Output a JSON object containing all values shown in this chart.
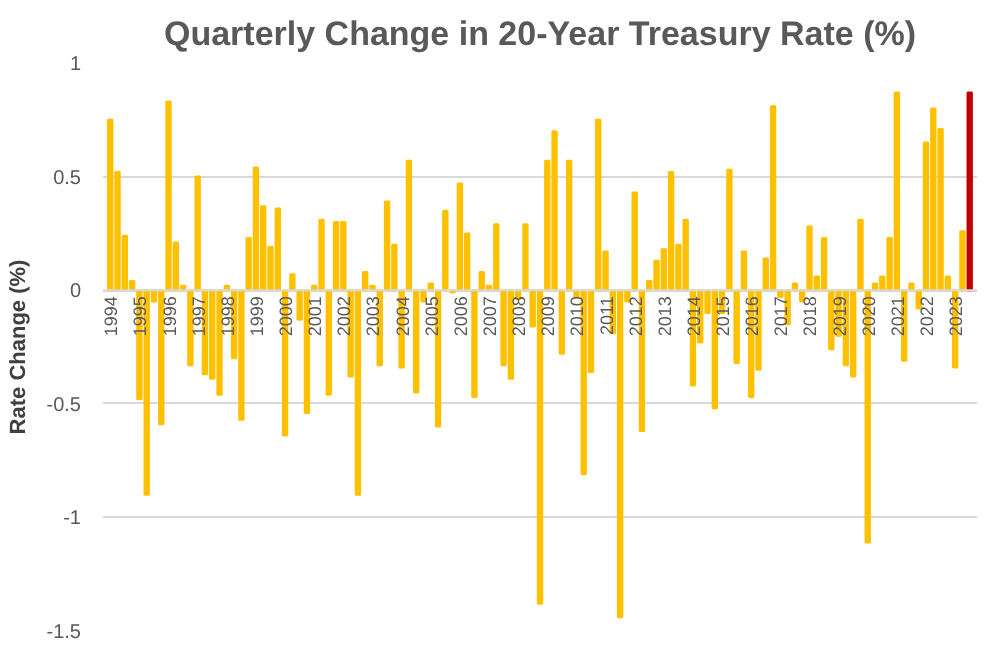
{
  "chart_data": {
    "type": "bar",
    "title": "Quarterly Change in 20-Year Treasury Rate (%)",
    "ylabel": "Rate Change (%)",
    "categories": [
      "1994",
      null,
      null,
      null,
      "1995",
      null,
      null,
      null,
      "1996",
      null,
      null,
      null,
      "1997",
      null,
      null,
      null,
      "1998",
      null,
      null,
      null,
      "1999",
      null,
      null,
      null,
      "2000",
      null,
      null,
      null,
      "2001",
      null,
      null,
      null,
      "2002",
      null,
      null,
      null,
      "2003",
      null,
      null,
      null,
      "2004",
      null,
      null,
      null,
      "2005",
      null,
      null,
      null,
      "2006",
      null,
      null,
      null,
      "2007",
      null,
      null,
      null,
      "2008",
      null,
      null,
      null,
      "2009",
      null,
      null,
      null,
      "2010",
      null,
      null,
      null,
      "2011",
      null,
      null,
      null,
      "2012",
      null,
      null,
      null,
      "2013",
      null,
      null,
      null,
      "2014",
      null,
      null,
      null,
      "2015",
      null,
      null,
      null,
      "2016",
      null,
      null,
      null,
      "2017",
      null,
      null,
      null,
      "2018",
      null,
      null,
      null,
      "2019",
      null,
      null,
      null,
      "2020",
      null,
      null,
      null,
      "2021",
      null,
      null,
      null,
      "2022",
      null,
      null,
      null,
      "2023",
      null,
      null
    ],
    "values": [
      0.75,
      0.52,
      0.24,
      0.04,
      -0.48,
      -0.9,
      -0.05,
      -0.59,
      0.83,
      0.21,
      0.02,
      -0.33,
      0.5,
      -0.37,
      -0.39,
      -0.46,
      0.02,
      -0.3,
      -0.57,
      0.23,
      0.54,
      0.37,
      0.19,
      0.36,
      -0.64,
      0.07,
      -0.13,
      -0.54,
      0.02,
      0.31,
      -0.46,
      0.3,
      0.3,
      -0.38,
      -0.9,
      0.08,
      0.02,
      -0.33,
      0.39,
      0.2,
      -0.34,
      0.57,
      -0.45,
      -0.05,
      0.03,
      -0.6,
      0.35,
      -0.01,
      0.47,
      0.25,
      -0.47,
      0.08,
      0.02,
      0.29,
      -0.33,
      -0.39,
      -0.04,
      0.29,
      -0.16,
      -1.38,
      0.57,
      0.7,
      -0.28,
      0.57,
      -0.03,
      -0.81,
      -0.36,
      0.75,
      0.17,
      -0.19,
      -1.44,
      -0.05,
      0.43,
      -0.62,
      0.04,
      0.13,
      0.18,
      0.52,
      0.2,
      0.31,
      -0.42,
      -0.23,
      -0.1,
      -0.52,
      -0.1,
      0.53,
      -0.32,
      0.17,
      -0.47,
      -0.35,
      0.14,
      0.81,
      -0.03,
      -0.15,
      0.03,
      -0.05,
      0.28,
      0.06,
      0.23,
      -0.26,
      -0.2,
      -0.33,
      -0.38,
      0.31,
      -1.11,
      0.03,
      0.06,
      0.23,
      0.87,
      -0.31,
      0.03,
      -0.08,
      0.65,
      0.8,
      0.71,
      0.06,
      -0.34,
      0.26,
      0.87
    ],
    "colors": [
      "#ffc000",
      "#ffc000",
      "#ffc000",
      "#ffc000",
      "#ffc000",
      "#ffc000",
      "#ffc000",
      "#ffc000",
      "#ffc000",
      "#ffc000",
      "#ffc000",
      "#ffc000",
      "#ffc000",
      "#ffc000",
      "#ffc000",
      "#ffc000",
      "#ffc000",
      "#ffc000",
      "#ffc000",
      "#ffc000",
      "#ffc000",
      "#ffc000",
      "#ffc000",
      "#ffc000",
      "#ffc000",
      "#ffc000",
      "#ffc000",
      "#ffc000",
      "#ffc000",
      "#ffc000",
      "#ffc000",
      "#ffc000",
      "#ffc000",
      "#ffc000",
      "#ffc000",
      "#ffc000",
      "#ffc000",
      "#ffc000",
      "#ffc000",
      "#ffc000",
      "#ffc000",
      "#ffc000",
      "#ffc000",
      "#ffc000",
      "#ffc000",
      "#ffc000",
      "#ffc000",
      "#ffc000",
      "#ffc000",
      "#ffc000",
      "#ffc000",
      "#ffc000",
      "#ffc000",
      "#ffc000",
      "#ffc000",
      "#ffc000",
      "#ffc000",
      "#ffc000",
      "#ffc000",
      "#ffc000",
      "#ffc000",
      "#ffc000",
      "#ffc000",
      "#ffc000",
      "#ffc000",
      "#ffc000",
      "#ffc000",
      "#ffc000",
      "#ffc000",
      "#ffc000",
      "#ffc000",
      "#ffc000",
      "#ffc000",
      "#ffc000",
      "#ffc000",
      "#ffc000",
      "#ffc000",
      "#ffc000",
      "#ffc000",
      "#ffc000",
      "#ffc000",
      "#ffc000",
      "#ffc000",
      "#ffc000",
      "#ffc000",
      "#ffc000",
      "#ffc000",
      "#ffc000",
      "#ffc000",
      "#ffc000",
      "#ffc000",
      "#ffc000",
      "#ffc000",
      "#ffc000",
      "#ffc000",
      "#ffc000",
      "#ffc000",
      "#ffc000",
      "#ffc000",
      "#ffc000",
      "#ffc000",
      "#ffc000",
      "#ffc000",
      "#ffc000",
      "#ffc000",
      "#ffc000",
      "#ffc000",
      "#ffc000",
      "#ffc000",
      "#ffc000",
      "#ffc000",
      "#ffc000",
      "#ffc000",
      "#ffc000",
      "#ffc000",
      "#ffc000",
      "#ffc000",
      "#ffc000",
      "#c00000"
    ],
    "ylim": [
      -1.5,
      1.0
    ],
    "yticks": [
      {
        "value": -1.5,
        "label": "-1.5"
      },
      {
        "value": -1,
        "label": "-1"
      },
      {
        "value": -0.5,
        "label": "-0.5"
      },
      {
        "value": 0,
        "label": "0"
      },
      {
        "value": 0.5,
        "label": "0.5"
      },
      {
        "value": 1,
        "label": "1"
      }
    ],
    "grid": "y"
  }
}
